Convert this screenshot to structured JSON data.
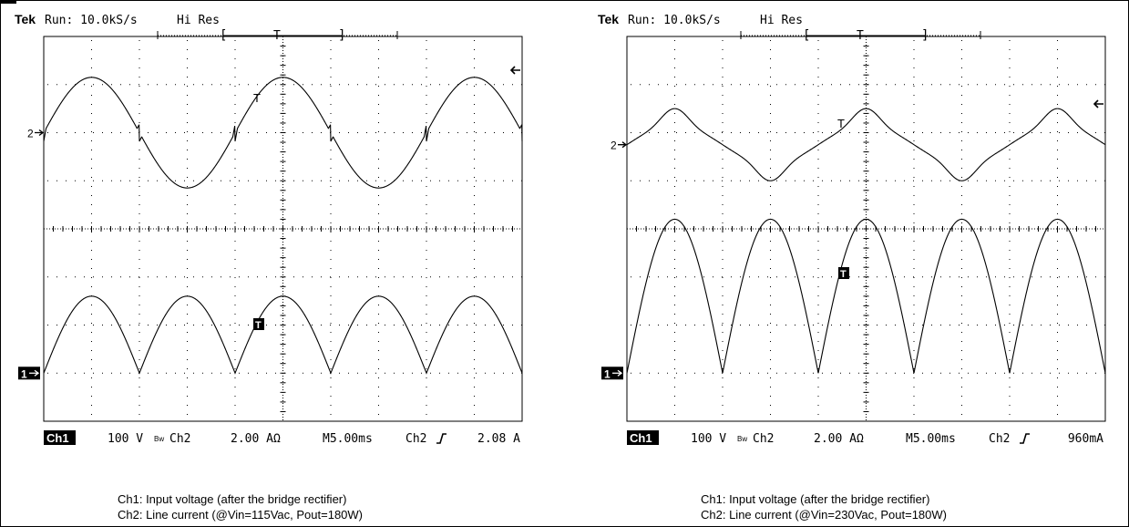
{
  "chart_data": [
    {
      "type": "line",
      "header": {
        "brand": "Tek",
        "status": "Run: 10.0kS/s",
        "mode": "Hi Res"
      },
      "trigger_bracket": {
        "open": "[",
        "marker": "T",
        "close": "]"
      },
      "channel_markers": {
        "ch2": "2",
        "ch1": "1"
      },
      "trigger_label": "T",
      "readout": {
        "ch1_label": "Ch1",
        "ch1_scale": "100 V",
        "bw": "Bᴡ",
        "ch2_label": "Ch2",
        "ch2_scale": "2.00 AΩ",
        "timebase": "M5.00ms",
        "trig_source": "Ch2",
        "trig_slope": "ʃ",
        "trig_level": "2.08 A"
      },
      "caption": [
        "Ch1: Input voltage (after the bridge rectifier)",
        "Ch2: Line current (@Vin=115Vac, Pout=180W)"
      ],
      "x_range_div": [
        0,
        10
      ],
      "y_range_div": [
        -4,
        4
      ],
      "grid": true,
      "series": [
        {
          "name": "Ch1",
          "shape": "rectified",
          "offset_div": -3,
          "amplitude_div": 1.6,
          "period_div": 2,
          "phase_div": 0
        },
        {
          "name": "Ch2",
          "shape": "sine",
          "offset_div": 2,
          "amplitude_div": 1.15,
          "period_div": 4,
          "phase_div": 0,
          "glitches": true
        }
      ]
    },
    {
      "type": "line",
      "header": {
        "brand": "Tek",
        "status": "Run: 10.0kS/s",
        "mode": "Hi Res"
      },
      "trigger_bracket": {
        "open": "[",
        "marker": "T",
        "close": "]"
      },
      "channel_markers": {
        "ch2": "2",
        "ch1": "1"
      },
      "trigger_label": "T",
      "readout": {
        "ch1_label": "Ch1",
        "ch1_scale": "100 V",
        "bw": "Bᴡ",
        "ch2_label": "Ch2",
        "ch2_scale": "2.00 AΩ",
        "timebase": "M5.00ms",
        "trig_source": "Ch2",
        "trig_slope": "ʃ",
        "trig_level": "960mA"
      },
      "caption": [
        "Ch1: Input voltage (after the bridge rectifier)",
        "Ch2: Line current (@Vin=230Vac, Pout=180W)"
      ],
      "x_range_div": [
        0,
        10
      ],
      "y_range_div": [
        -4,
        4
      ],
      "grid": true,
      "series": [
        {
          "name": "Ch1",
          "shape": "rectified",
          "offset_div": -3,
          "amplitude_div": 3.2,
          "period_div": 2,
          "phase_div": 0
        },
        {
          "name": "Ch2",
          "shape": "peaky",
          "offset_div": 1.75,
          "amplitude_div": 0.75,
          "period_div": 4,
          "phase_div": 0
        }
      ]
    }
  ]
}
